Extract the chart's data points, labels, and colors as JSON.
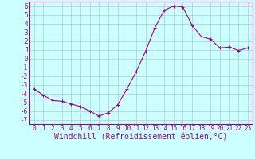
{
  "x": [
    0,
    1,
    2,
    3,
    4,
    5,
    6,
    7,
    8,
    9,
    10,
    11,
    12,
    13,
    14,
    15,
    16,
    17,
    18,
    19,
    20,
    21,
    22,
    23
  ],
  "y": [
    -3.5,
    -4.2,
    -4.8,
    -4.9,
    -5.2,
    -5.5,
    -6.0,
    -6.6,
    -6.2,
    -5.3,
    -3.5,
    -1.5,
    0.8,
    3.5,
    5.5,
    6.0,
    5.9,
    3.8,
    2.5,
    2.2,
    1.2,
    1.3,
    0.9,
    1.2
  ],
  "line_color": "#990099",
  "marker": "+",
  "marker_size": 3.5,
  "bg_color": "#ccffff",
  "grid_color": "#aacccc",
  "xlabel": "Windchill (Refroidissement éolien,°C)",
  "xlim": [
    -0.5,
    23.5
  ],
  "ylim": [
    -7.5,
    6.5
  ],
  "xticks": [
    0,
    1,
    2,
    3,
    4,
    5,
    6,
    7,
    8,
    9,
    10,
    11,
    12,
    13,
    14,
    15,
    16,
    17,
    18,
    19,
    20,
    21,
    22,
    23
  ],
  "yticks": [
    6,
    5,
    4,
    3,
    2,
    1,
    0,
    -1,
    -2,
    -3,
    -4,
    -5,
    -6,
    -7
  ],
  "tick_fontsize": 5.5,
  "xlabel_fontsize": 7,
  "label_color": "#990099",
  "axis_color": "#990099"
}
